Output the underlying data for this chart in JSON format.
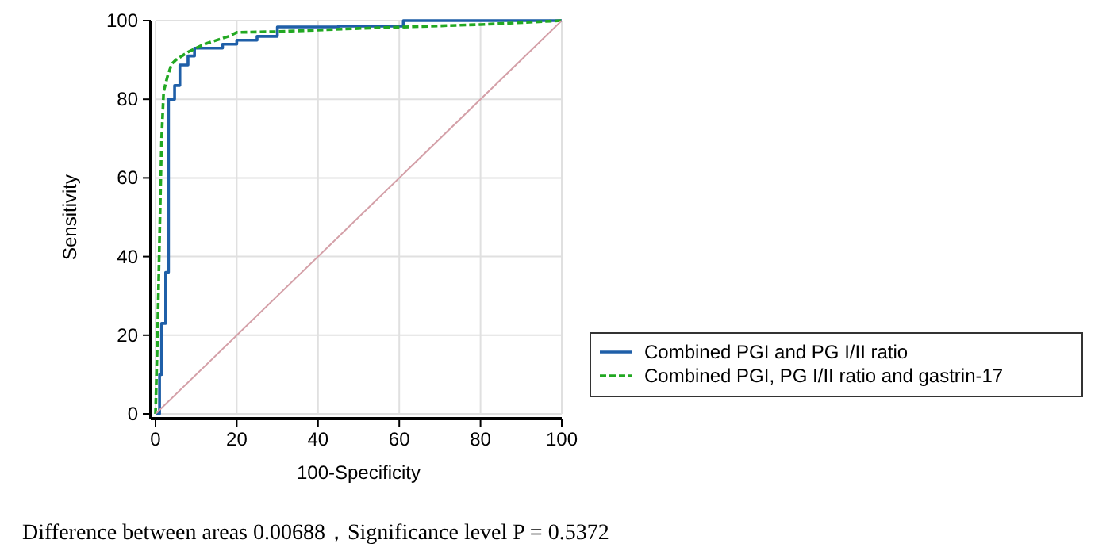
{
  "chart_data": {
    "type": "step",
    "xlabel": "100-Specificity",
    "ylabel": "Sensitivity",
    "xlim": [
      0,
      100
    ],
    "ylim": [
      0,
      100
    ],
    "xticks": [
      0,
      20,
      40,
      60,
      80,
      100
    ],
    "yticks": [
      0,
      20,
      40,
      60,
      80,
      100
    ],
    "grid": true,
    "legend": "right",
    "annotations": [
      "Difference between areas 0.00688，Significance level P = 0.5372"
    ],
    "series": [
      {
        "name": "Combined PGI and PG I/II ratio",
        "color": "#1f5fa8",
        "line_style": "solid",
        "x": [
          0,
          1,
          1.5,
          2.5,
          3.2,
          4.7,
          6,
          8,
          9.6,
          16.5,
          20,
          25,
          30,
          45,
          61,
          100
        ],
        "values": [
          0,
          10,
          23,
          36,
          80,
          83.5,
          88.7,
          91,
          93,
          94,
          95,
          96,
          98.4,
          98.6,
          100,
          100
        ]
      },
      {
        "name": "Combined PGI, PG I/II ratio and gastrin-17",
        "color": "#22a822",
        "line_style": "dashed",
        "type": "line",
        "x": [
          0,
          0.5,
          1,
          1.5,
          2,
          3,
          4,
          5,
          8,
          12,
          18,
          20,
          30,
          50,
          80,
          100
        ],
        "values": [
          0,
          20,
          45,
          70,
          82,
          86,
          89,
          90,
          92,
          94,
          96,
          97,
          97.2,
          98,
          99,
          100
        ]
      },
      {
        "color": "#d4a0a8",
        "line_style": "solid",
        "type": "line",
        "x": [
          0,
          100
        ],
        "values": [
          0,
          100
        ]
      }
    ]
  }
}
